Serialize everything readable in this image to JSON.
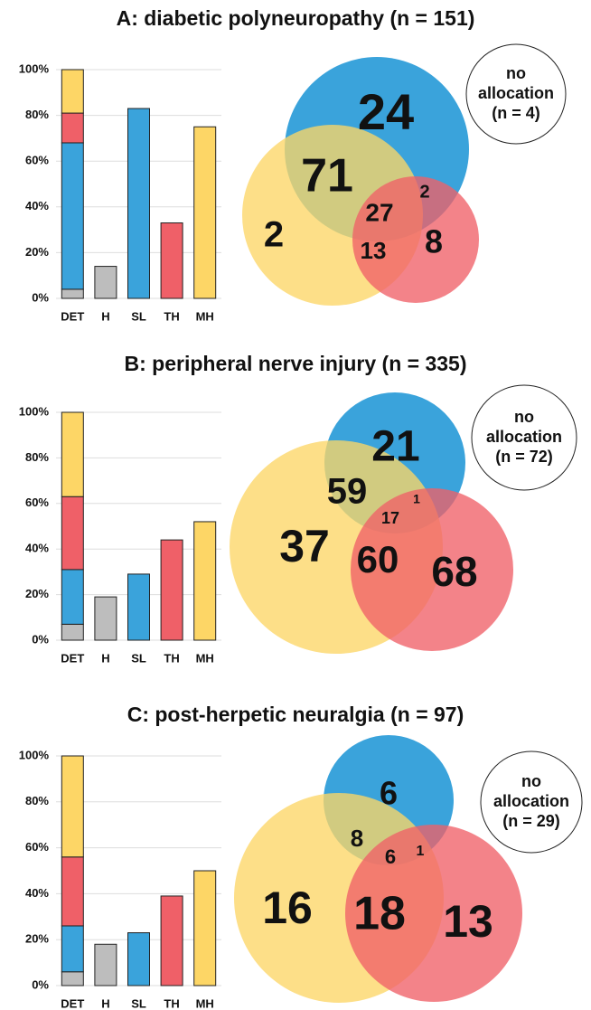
{
  "chart_data": [
    {
      "type": "bar",
      "title": "A: diabetic polyneuropathy (n = 151)",
      "stacked": true,
      "grid": true,
      "categories": [
        "DET",
        "H",
        "SL",
        "TH",
        "MH"
      ],
      "series": [
        {
          "color": "#bdbdbd",
          "values": [
            4,
            14,
            null,
            null,
            null
          ]
        },
        {
          "color": "#3aa3db",
          "values": [
            64,
            null,
            83,
            null,
            null
          ]
        },
        {
          "color": "#ef6068",
          "values": [
            13,
            null,
            null,
            33,
            null
          ]
        },
        {
          "color": "#fdd666",
          "values": [
            19,
            null,
            null,
            null,
            75
          ]
        }
      ],
      "ylim": [
        0,
        100
      ],
      "yticks": [
        {
          "value": 0,
          "label": "0%"
        },
        {
          "value": 20,
          "label": "20%"
        },
        {
          "value": 40,
          "label": "40%"
        },
        {
          "value": 60,
          "label": "60%"
        },
        {
          "value": 80,
          "label": "80%"
        },
        {
          "value": 100,
          "label": "100%"
        }
      ]
    },
    {
      "type": "venn",
      "values": [
        24,
        71,
        2,
        27,
        2,
        13,
        8
      ],
      "note": [
        "no",
        "allocation",
        "(n = 4)"
      ]
    },
    {
      "type": "bar",
      "title": "B: peripheral nerve injury (n = 335)",
      "stacked": true,
      "grid": true,
      "categories": [
        "DET",
        "H",
        "SL",
        "TH",
        "MH"
      ],
      "series": [
        {
          "color": "#bdbdbd",
          "values": [
            7,
            19,
            null,
            null,
            null
          ]
        },
        {
          "color": "#3aa3db",
          "values": [
            24,
            null,
            29,
            null,
            null
          ]
        },
        {
          "color": "#ef6068",
          "values": [
            32,
            null,
            null,
            44,
            null
          ]
        },
        {
          "color": "#fdd666",
          "values": [
            37,
            null,
            null,
            null,
            52
          ]
        }
      ],
      "ylim": [
        0,
        100
      ],
      "yticks": [
        {
          "value": 0,
          "label": "0%"
        },
        {
          "value": 20,
          "label": "20%"
        },
        {
          "value": 40,
          "label": "40%"
        },
        {
          "value": 60,
          "label": "60%"
        },
        {
          "value": 80,
          "label": "80%"
        },
        {
          "value": 100,
          "label": "100%"
        }
      ]
    },
    {
      "type": "venn",
      "values": [
        21,
        59,
        37,
        17,
        1,
        60,
        68
      ],
      "note": [
        "no",
        "allocation",
        "(n = 72)"
      ]
    },
    {
      "type": "bar",
      "title": "C: post-herpetic neuralgia (n = 97)",
      "stacked": true,
      "grid": true,
      "categories": [
        "DET",
        "H",
        "SL",
        "TH",
        "MH"
      ],
      "series": [
        {
          "color": "#bdbdbd",
          "values": [
            6,
            18,
            null,
            null,
            null
          ]
        },
        {
          "color": "#3aa3db",
          "values": [
            20,
            null,
            23,
            null,
            null
          ]
        },
        {
          "color": "#ef6068",
          "values": [
            30,
            null,
            null,
            39,
            null
          ]
        },
        {
          "color": "#fdd666",
          "values": [
            44,
            null,
            null,
            null,
            50
          ]
        }
      ],
      "ylim": [
        0,
        100
      ],
      "yticks": [
        {
          "value": 0,
          "label": "0%"
        },
        {
          "value": 20,
          "label": "20%"
        },
        {
          "value": 40,
          "label": "40%"
        },
        {
          "value": 60,
          "label": "60%"
        },
        {
          "value": 80,
          "label": "80%"
        },
        {
          "value": 100,
          "label": "100%"
        }
      ]
    },
    {
      "type": "venn",
      "values": [
        6,
        8,
        16,
        6,
        1,
        18,
        13
      ],
      "note": [
        "no",
        "allocation",
        "(n = 29)"
      ]
    }
  ]
}
